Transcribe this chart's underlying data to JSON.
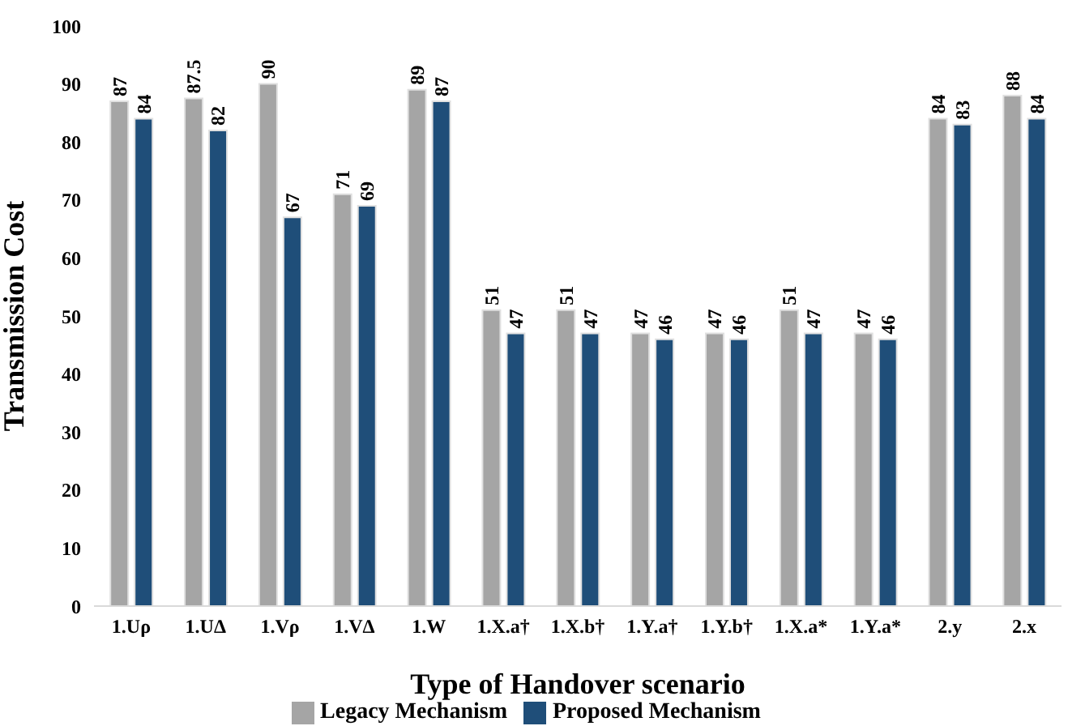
{
  "chart_data": {
    "type": "bar",
    "xlabel": "Type of Handover scenario",
    "ylabel": "Transmission Cost",
    "categories": [
      "1.Uρ",
      "1.UΔ",
      "1.Vρ",
      "1.VΔ",
      "1.W",
      "1.X.a†",
      "1.X.b†",
      "1.Y.a†",
      "1.Y.b†",
      "1.X.a*",
      "1.Y.a*",
      "2.y",
      "2.x"
    ],
    "series": [
      {
        "name": "Legacy Mechanism",
        "color": "#a5a5a5",
        "values": [
          87,
          87.5,
          90,
          71,
          89,
          51,
          51,
          47,
          47,
          51,
          47,
          84,
          88
        ]
      },
      {
        "name": "Proposed Mechanism",
        "color": "#1f4e79",
        "values": [
          84,
          82,
          67,
          69,
          87,
          47,
          47,
          46,
          46,
          47,
          46,
          83,
          84
        ]
      }
    ],
    "ylim": [
      0,
      100
    ],
    "yticks": [
      0,
      10,
      20,
      30,
      40,
      50,
      60,
      70,
      80,
      90,
      100
    ],
    "grid": false,
    "legend": "bottom",
    "data_labels": true
  }
}
